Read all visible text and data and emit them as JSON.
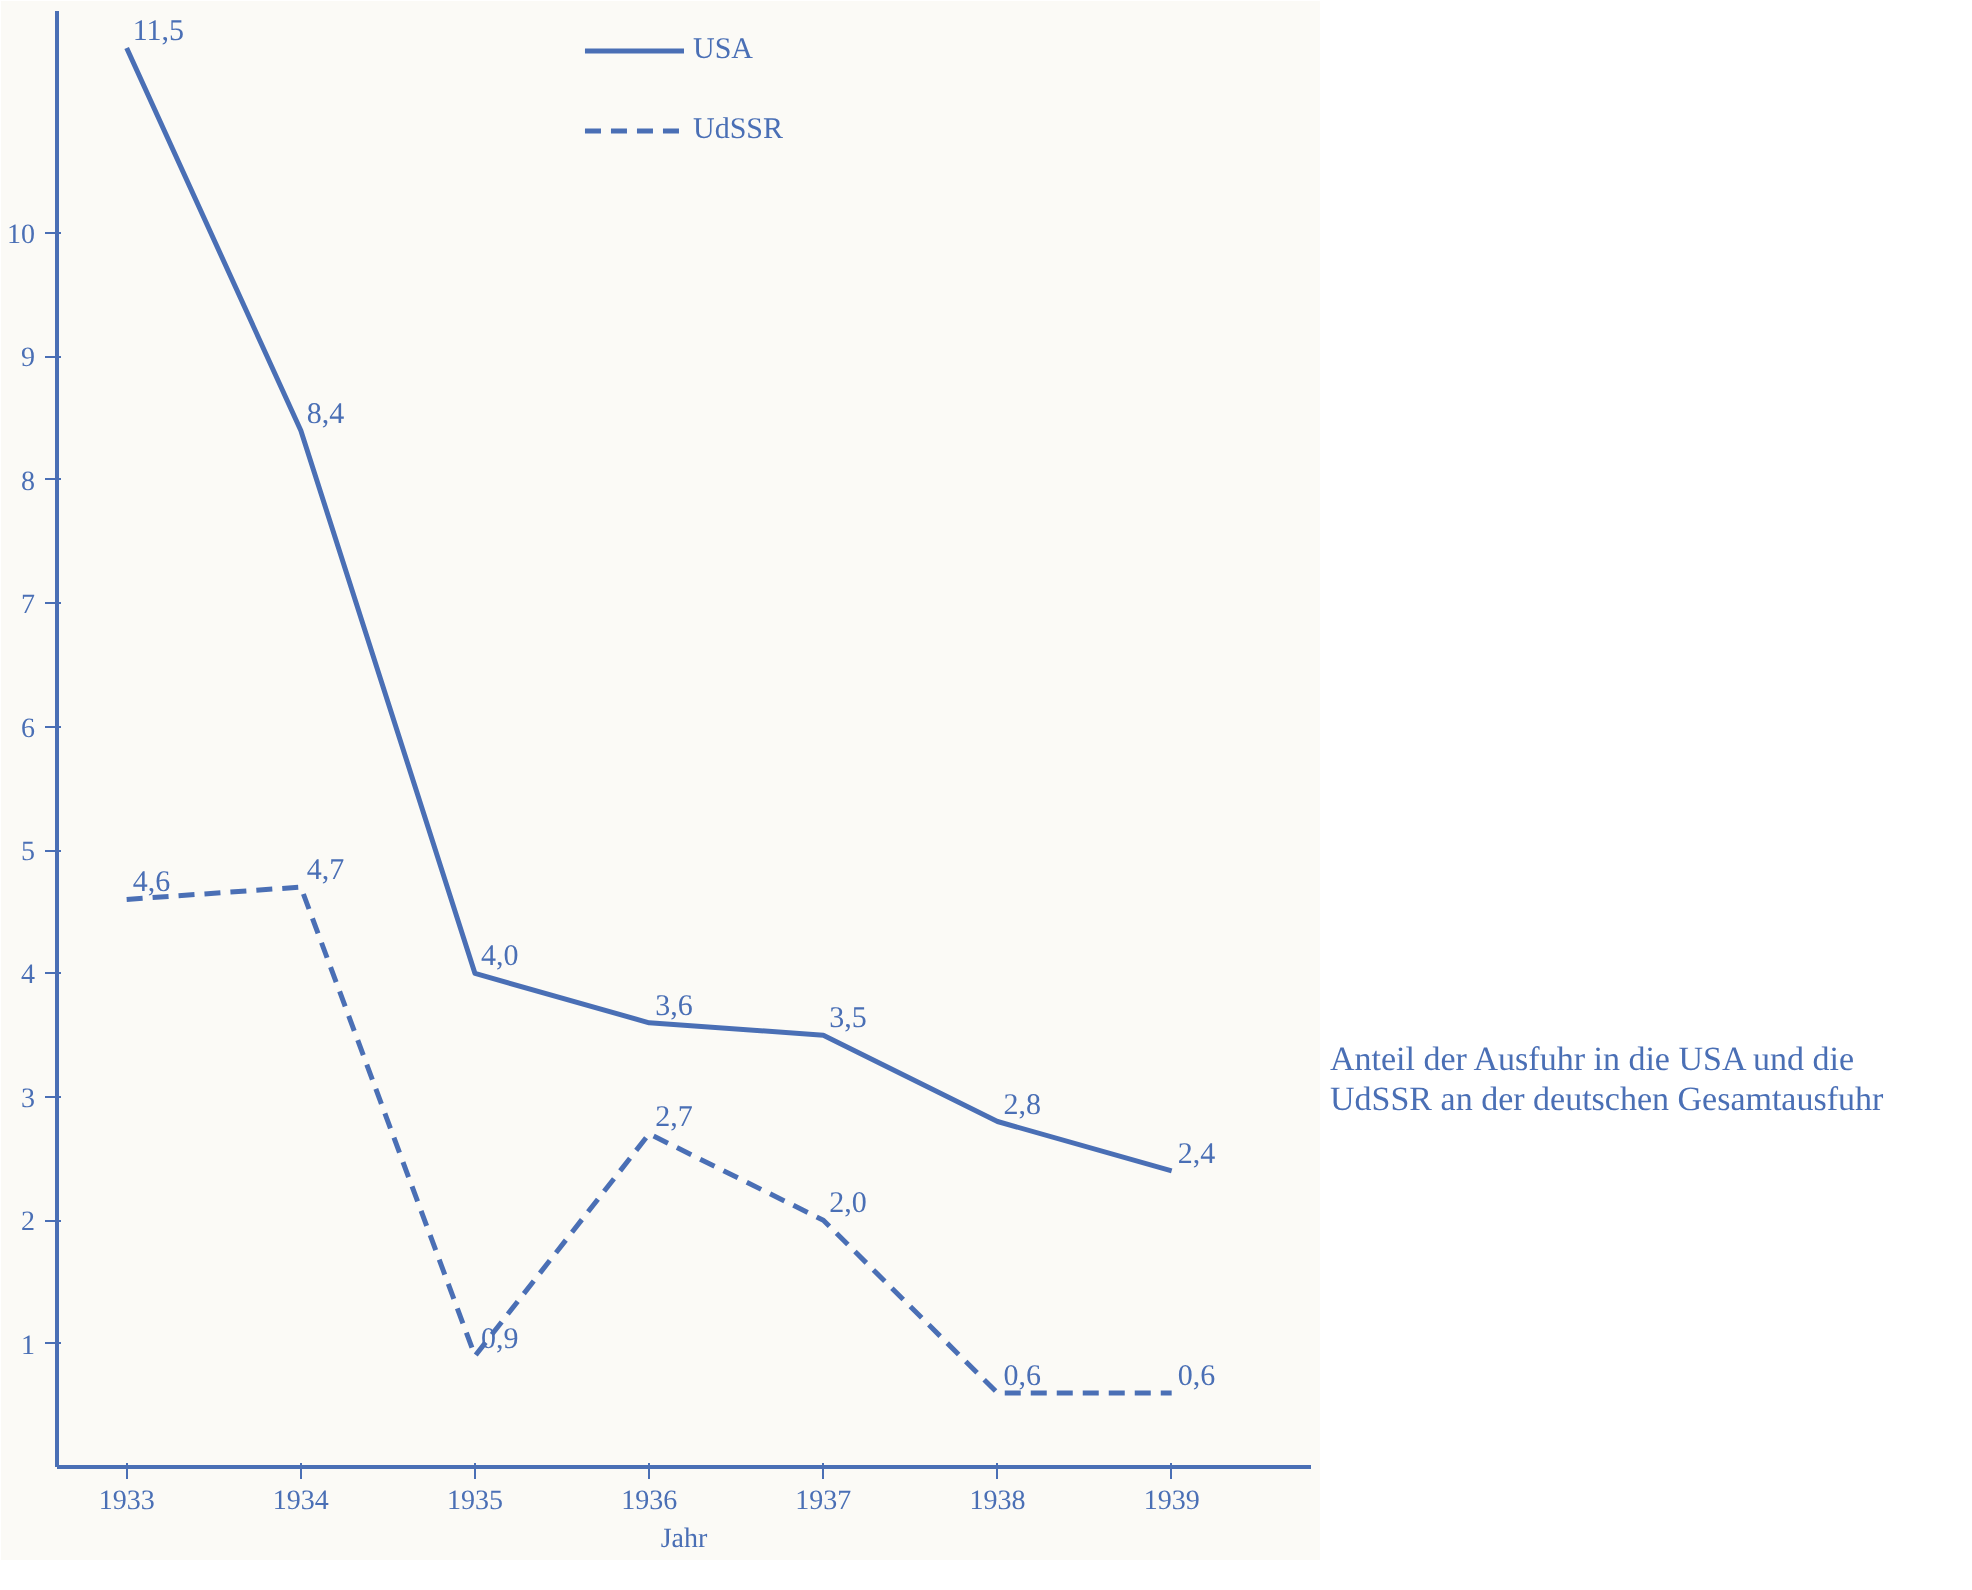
{
  "chart_data": {
    "type": "line",
    "x": [
      1933,
      1934,
      1935,
      1936,
      1937,
      1938,
      1939
    ],
    "series": [
      {
        "name": "USA",
        "color": "#4a6fb5",
        "values": [
          11.5,
          8.4,
          4.0,
          3.6,
          3.5,
          2.8,
          2.4
        ],
        "value_labels": [
          "11,5",
          "8,4",
          "4,0",
          "3,6",
          "3,5",
          "2,8",
          "2,4"
        ],
        "line_style": "solid"
      },
      {
        "name": "UdSSR",
        "color": "#4a6fb5",
        "values": [
          4.6,
          4.7,
          0.9,
          2.7,
          2.0,
          0.6,
          0.6
        ],
        "value_labels": [
          "4,6",
          "4,7",
          "0,9",
          "2,7",
          "2,0",
          "0,6",
          "0,6"
        ],
        "line_style": "dashed"
      }
    ],
    "xlabel": "Jahr",
    "xlim": [
      1932.6,
      1939.8
    ],
    "xticks": [
      1933,
      1934,
      1935,
      1936,
      1937,
      1938,
      1939
    ],
    "ylim": [
      0,
      11.8
    ],
    "yticks": [
      1,
      2,
      3,
      4,
      5,
      6,
      7,
      8,
      9,
      10
    ],
    "grid": false,
    "legend": "top",
    "marker": "none",
    "annotations": [
      "Anteil der Ausfuhr in die USA und die UdSSR an der deutschen Gesamtausfuhr"
    ]
  }
}
